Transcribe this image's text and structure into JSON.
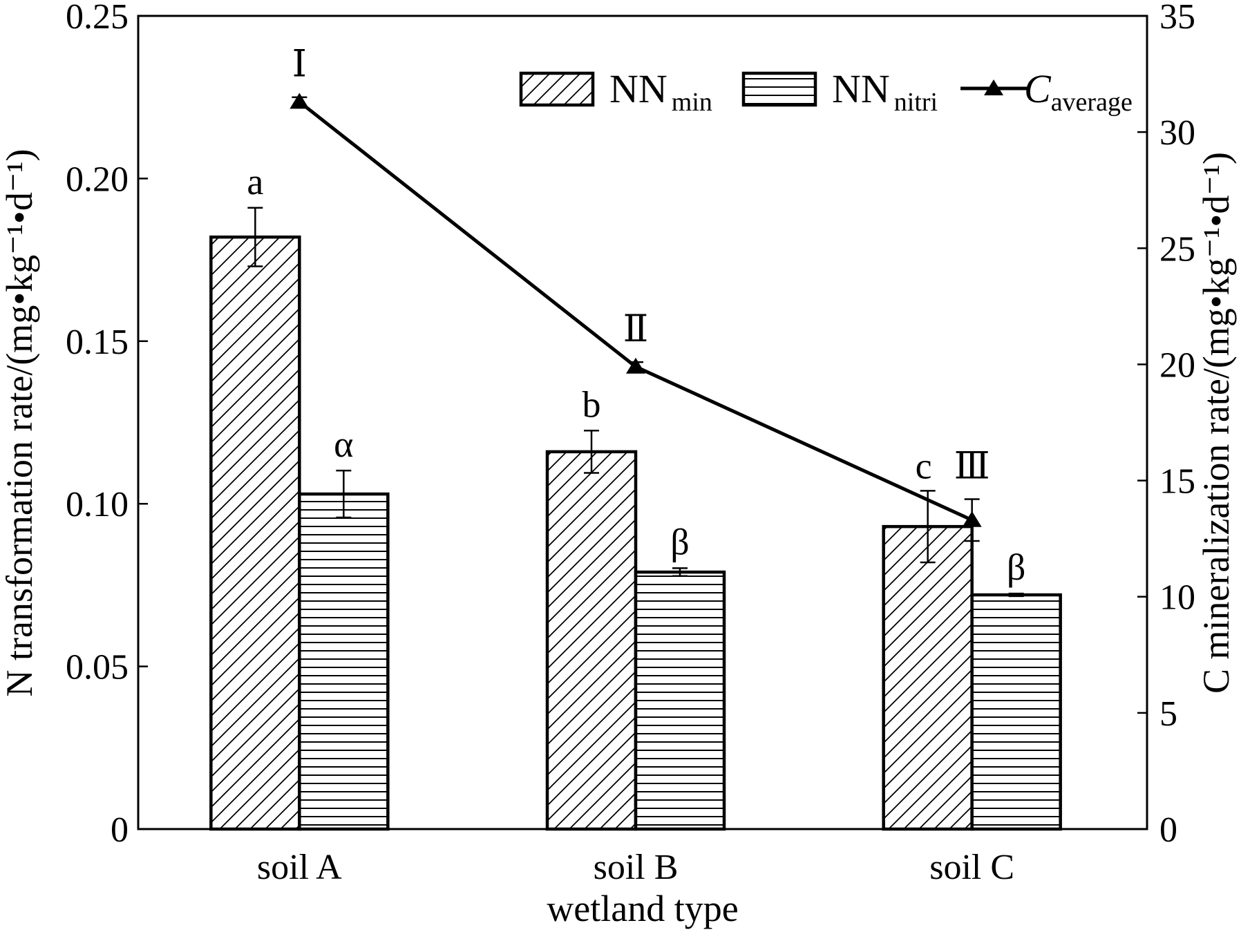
{
  "chart_data": {
    "type": "bar",
    "categories": [
      "soil A",
      "soil B",
      "soil C"
    ],
    "xlabel": "wetland type",
    "ylabel_left": "N transformation rate/(mg•kg⁻¹•d⁻¹)",
    "ylabel_right": "C mineralization rate/(mg•kg⁻¹•d⁻¹)",
    "ylim_left": [
      0,
      0.25
    ],
    "ylim_right": [
      0,
      35
    ],
    "yticks_left": [
      "0",
      "0.05",
      "0.10",
      "0.15",
      "0.20",
      "0.25"
    ],
    "yticks_right": [
      "0",
      "5",
      "10",
      "15",
      "20",
      "25",
      "30",
      "35"
    ],
    "series": [
      {
        "name": "NN",
        "name_sub": "min",
        "axis": "left",
        "kind": "bar",
        "pattern": "diagonal-hatch",
        "values": [
          0.182,
          0.116,
          0.093
        ],
        "errors": [
          0.009,
          0.0065,
          0.011
        ],
        "labels": [
          "a",
          "b",
          "c"
        ]
      },
      {
        "name": "NN",
        "name_sub": "nitri",
        "axis": "left",
        "kind": "bar",
        "pattern": "horizontal-hatch",
        "values": [
          0.103,
          0.079,
          0.072
        ],
        "errors": [
          0.0072,
          0.0012,
          0.0004
        ],
        "labels": [
          "α",
          "β",
          "β"
        ]
      },
      {
        "name": "C",
        "name_sub": "average",
        "axis": "right",
        "kind": "line",
        "marker": "triangle",
        "values": [
          31.3,
          19.9,
          13.3
        ],
        "errors": [
          0.2,
          0.2,
          0.9
        ],
        "labels": [
          "Ⅰ",
          "Ⅱ",
          "Ⅲ"
        ]
      }
    ],
    "grid": false,
    "legend_position": "top-right"
  }
}
